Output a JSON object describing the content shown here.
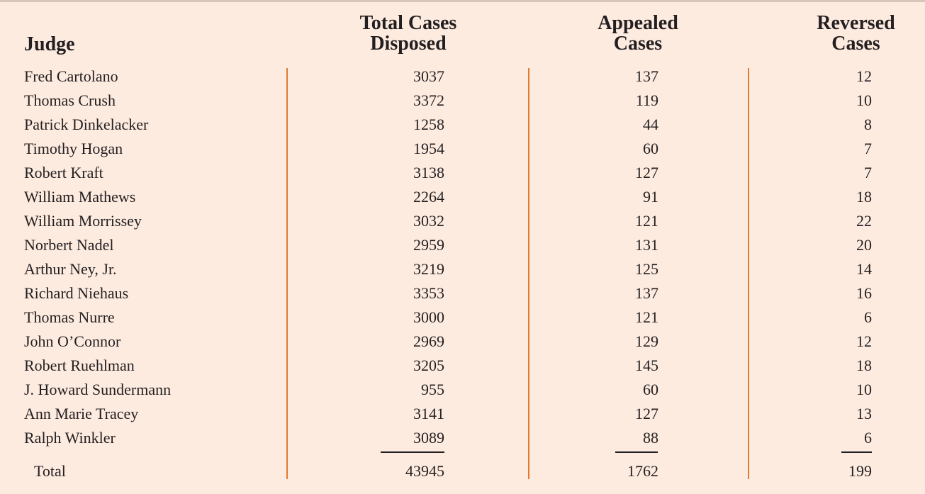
{
  "headers": {
    "judge": "Judge",
    "total_line1": "Total Cases",
    "total_line2": "Disposed",
    "appealed_line1": "Appealed",
    "appealed_line2": "Cases",
    "reversed_line1": "Reversed",
    "reversed_line2": "Cases"
  },
  "rows": [
    {
      "judge": "Fred Cartolano",
      "total": "3037",
      "appealed": "137",
      "reversed": "12"
    },
    {
      "judge": "Thomas Crush",
      "total": "3372",
      "appealed": "119",
      "reversed": "10"
    },
    {
      "judge": "Patrick Dinkelacker",
      "total": "1258",
      "appealed": "44",
      "reversed": "8"
    },
    {
      "judge": "Timothy Hogan",
      "total": "1954",
      "appealed": "60",
      "reversed": "7"
    },
    {
      "judge": "Robert Kraft",
      "total": "3138",
      "appealed": "127",
      "reversed": "7"
    },
    {
      "judge": "William Mathews",
      "total": "2264",
      "appealed": "91",
      "reversed": "18"
    },
    {
      "judge": "William Morrissey",
      "total": "3032",
      "appealed": "121",
      "reversed": "22"
    },
    {
      "judge": "Norbert Nadel",
      "total": "2959",
      "appealed": "131",
      "reversed": "20"
    },
    {
      "judge": "Arthur Ney, Jr.",
      "total": "3219",
      "appealed": "125",
      "reversed": "14"
    },
    {
      "judge": "Richard Niehaus",
      "total": "3353",
      "appealed": "137",
      "reversed": "16"
    },
    {
      "judge": "Thomas Nurre",
      "total": "3000",
      "appealed": "121",
      "reversed": "6"
    },
    {
      "judge": "John O’Connor",
      "total": "2969",
      "appealed": "129",
      "reversed": "12"
    },
    {
      "judge": "Robert Ruehlman",
      "total": "3205",
      "appealed": "145",
      "reversed": "18"
    },
    {
      "judge": "J. Howard Sundermann",
      "total": "955",
      "appealed": "60",
      "reversed": "10"
    },
    {
      "judge": "Ann Marie Tracey",
      "total": "3141",
      "appealed": "127",
      "reversed": "13"
    },
    {
      "judge": "Ralph Winkler",
      "total": "3089",
      "appealed": "88",
      "reversed": "6"
    }
  ],
  "totals": {
    "label": "Total",
    "total": "43945",
    "appealed": "1762",
    "reversed": "199"
  },
  "colors": {
    "background": "#fdebe0",
    "divider": "#e07b33",
    "text": "#231f20"
  }
}
